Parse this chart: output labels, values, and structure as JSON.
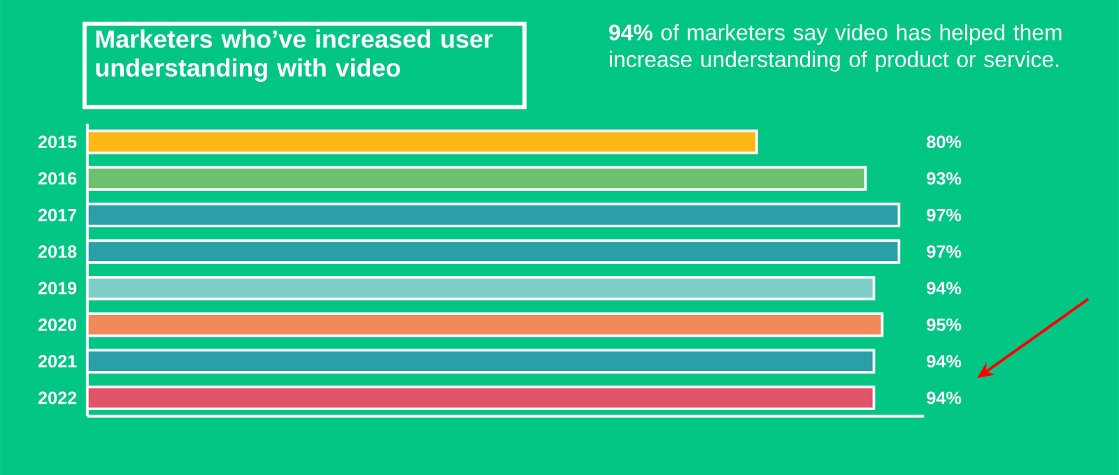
{
  "chart_data": {
    "type": "bar",
    "orientation": "horizontal",
    "title": "Marketers who’ve increased user understanding with video",
    "subtitle": "**94%** of marketers say video has helped them increase understanding of product or service.",
    "categories": [
      "2015",
      "2016",
      "2017",
      "2018",
      "2019",
      "2020",
      "2021",
      "2022"
    ],
    "values": [
      80,
      93,
      97,
      97,
      94,
      95,
      94,
      94
    ],
    "colors": [
      "#fdb913",
      "#6cc070",
      "#2a9fa8",
      "#2a9fa8",
      "#7ecfc6",
      "#f08a5d",
      "#2a9fa8",
      "#e05568"
    ],
    "value_labels": [
      "80%",
      "93%",
      "97%",
      "97%",
      "94%",
      "95%",
      "94%",
      "94%"
    ],
    "xlim": [
      0,
      100
    ],
    "tick_labels": "y",
    "grid": false
  }
}
